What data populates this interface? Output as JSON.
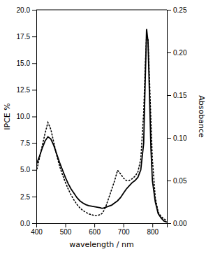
{
  "chart_data": {
    "type": "line",
    "xlabel": "wavelength / nm",
    "ylabel": "IPCE %",
    "y2label": "Absobance",
    "xlim": [
      400,
      850
    ],
    "ylim": [
      0.0,
      20.0
    ],
    "y2lim": [
      0.0,
      0.25
    ],
    "xticks": [
      400,
      500,
      600,
      700,
      800
    ],
    "yticks": [
      {
        "value": 0.0,
        "label": "0.0"
      },
      2.5,
      {
        "value": 5.0,
        "label": "5.0"
      },
      7.5,
      {
        "value": 10.0,
        "label": "10.0"
      },
      12.5,
      {
        "value": 15.0,
        "label": "15.0"
      },
      17.5,
      {
        "value": 20.0,
        "label": "20.0"
      }
    ],
    "y2ticks": [
      {
        "value": 0.0,
        "label": "0.00"
      },
      0.05,
      {
        "value": 0.1,
        "label": "0.10"
      },
      0.15,
      {
        "value": 0.2,
        "label": "0.20"
      },
      0.25
    ],
    "x": [
      400,
      410,
      420,
      430,
      440,
      450,
      460,
      470,
      480,
      490,
      500,
      510,
      520,
      530,
      540,
      550,
      560,
      570,
      580,
      590,
      600,
      610,
      620,
      625,
      630,
      640,
      650,
      660,
      670,
      680,
      690,
      700,
      710,
      720,
      730,
      740,
      750,
      760,
      770,
      775,
      780,
      785,
      790,
      795,
      800,
      810,
      820,
      830,
      840,
      850
    ],
    "series": [
      {
        "values": [
          5.5,
          6.2,
          7.0,
          7.7,
          8.1,
          7.9,
          7.3,
          6.5,
          5.7,
          5.0,
          4.3,
          3.7,
          3.2,
          2.8,
          2.4,
          2.1,
          1.9,
          1.75,
          1.65,
          1.6,
          1.55,
          1.5,
          1.45,
          1.4,
          1.4,
          1.5,
          1.6,
          1.7,
          1.9,
          2.1,
          2.4,
          2.8,
          3.2,
          3.5,
          3.8,
          4.0,
          4.3,
          5.0,
          7.5,
          13.0,
          18.2,
          17.0,
          12.0,
          7.0,
          4.0,
          2.0,
          0.9,
          0.5,
          0.2,
          0.1
        ],
        "color": "#000000",
        "line_style": "solid"
      },
      {
        "values": [
          0.06,
          0.075,
          0.09,
          0.105,
          0.118,
          0.11,
          0.095,
          0.08,
          0.067,
          0.057,
          0.048,
          0.04,
          0.033,
          0.027,
          0.022,
          0.018,
          0.015,
          0.013,
          0.011,
          0.01,
          0.009,
          0.009,
          0.01,
          0.011,
          0.013,
          0.02,
          0.03,
          0.04,
          0.05,
          0.062,
          0.058,
          0.053,
          0.05,
          0.05,
          0.052,
          0.055,
          0.06,
          0.075,
          0.13,
          0.18,
          0.22,
          0.215,
          0.17,
          0.12,
          0.075,
          0.03,
          0.013,
          0.008,
          0.005,
          0.003
        ],
        "color": "#000000",
        "line_style": "dotted",
        "axis": "y2"
      }
    ]
  }
}
